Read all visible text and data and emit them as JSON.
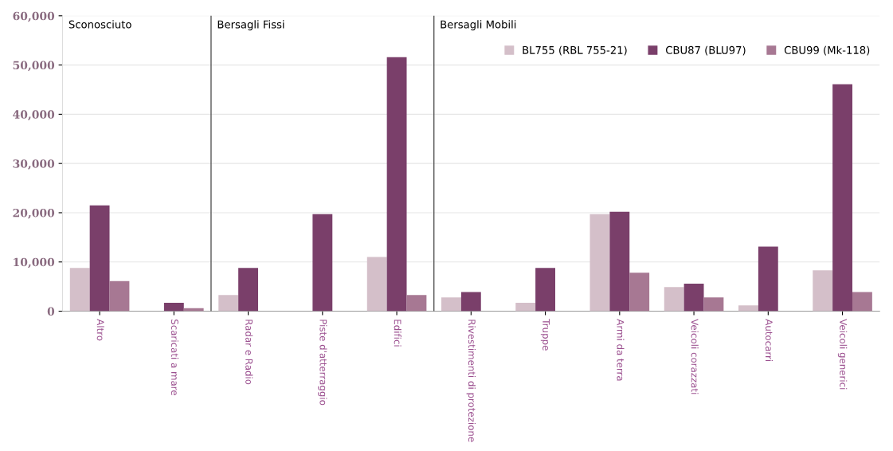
{
  "chart_data": {
    "type": "bar",
    "categories": [
      "Altro",
      "Scaricati a mare",
      "Radar e Radio",
      "Piste d'atterraggio",
      "Edifici",
      "Rivestimenti di protezione",
      "Truppe",
      "Armi da terra",
      "Veicoli corazzati",
      "Autocarri",
      "Veicoli generici"
    ],
    "series": [
      {
        "name": "BL755 (RBL 755-21)",
        "color": "#d4bfc9",
        "values": [
          8800,
          0,
          3300,
          0,
          11000,
          2800,
          1700,
          19700,
          4900,
          1200,
          8300
        ]
      },
      {
        "name": "CBU87 (BLU97)",
        "color": "#7a3f6a",
        "values": [
          21500,
          1700,
          8800,
          19700,
          51600,
          3900,
          8800,
          20200,
          5600,
          13100,
          46100
        ]
      },
      {
        "name": "CBU99 (Mk-118)",
        "color": "#a77893",
        "values": [
          6100,
          600,
          0,
          0,
          3300,
          0,
          0,
          7800,
          2800,
          0,
          3900
        ]
      }
    ],
    "ylim": [
      0,
      60000
    ],
    "yticks": [
      {
        "value": 0,
        "label": "0"
      },
      {
        "value": 10000,
        "label": "10,000"
      },
      {
        "value": 20000,
        "label": "20,000"
      },
      {
        "value": 30000,
        "label": "30,000"
      },
      {
        "value": 40000,
        "label": "40,000"
      },
      {
        "value": 50000,
        "label": "50,000"
      },
      {
        "value": 60000,
        "label": "60,000"
      }
    ],
    "grid": "y",
    "legend": "top right",
    "annotations": [
      "Sconosciuto",
      "Bersagli Fissi",
      "Bersagli Mobili"
    ]
  }
}
